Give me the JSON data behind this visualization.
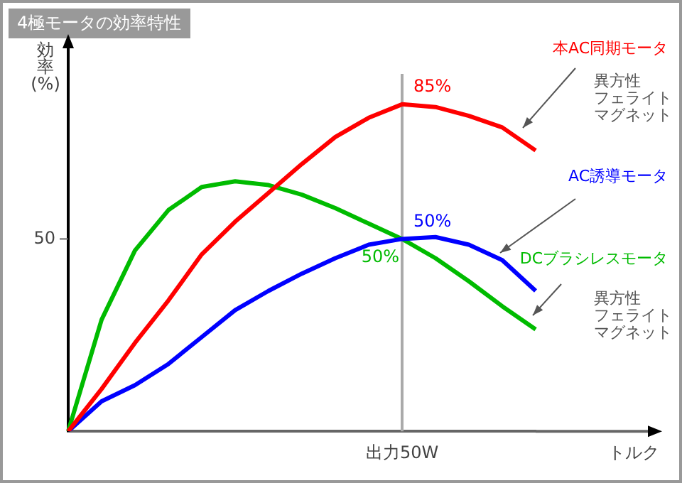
{
  "chart_data": {
    "type": "line",
    "title": "4極モータの効率特性",
    "xlabel": "トルク",
    "ylabel": "効率\n(%)",
    "categories": [
      null,
      null,
      null,
      null,
      null,
      null,
      null,
      null,
      null,
      null,
      null,
      null,
      null,
      null,
      null
    ],
    "grid": false,
    "legend": false,
    "marker": "none",
    "line_style": "solid",
    "series": [
      {
        "name": "本AC同期モータ",
        "color": "#ff0000",
        "values": [
          0,
          11,
          23,
          34,
          46,
          54.5,
          62,
          69.5,
          76.5,
          81.5,
          85,
          84.3,
          82,
          79,
          73
        ],
        "value_labels": [
          null,
          null,
          null,
          null,
          null,
          null,
          null,
          null,
          null,
          null,
          "85%",
          null,
          null,
          null,
          null
        ]
      },
      {
        "name": "AC誘導モータ",
        "color": "#0000ff",
        "values": [
          0,
          7.8,
          12,
          17.5,
          24.5,
          31.5,
          36.5,
          41,
          45,
          48.5,
          50,
          50.5,
          48.5,
          44.5,
          36.5
        ],
        "value_labels": [
          null,
          null,
          null,
          null,
          null,
          null,
          null,
          null,
          null,
          null,
          "50%",
          null,
          null,
          null,
          null
        ]
      },
      {
        "name": "DCブラシレスモータ",
        "color": "#00bb00",
        "values": [
          0,
          29,
          47,
          57.5,
          63.5,
          65,
          64,
          61.5,
          58,
          54,
          50,
          45,
          39,
          32.5,
          26.5
        ],
        "value_labels": [
          null,
          null,
          null,
          null,
          null,
          null,
          null,
          null,
          null,
          null,
          "50%",
          null,
          null,
          null,
          null
        ]
      }
    ],
    "annotations": [
      "出力50W",
      "50",
      "異方性",
      "フェライト",
      "マグネット",
      "異方性",
      "フェライト",
      "マグネット"
    ]
  }
}
